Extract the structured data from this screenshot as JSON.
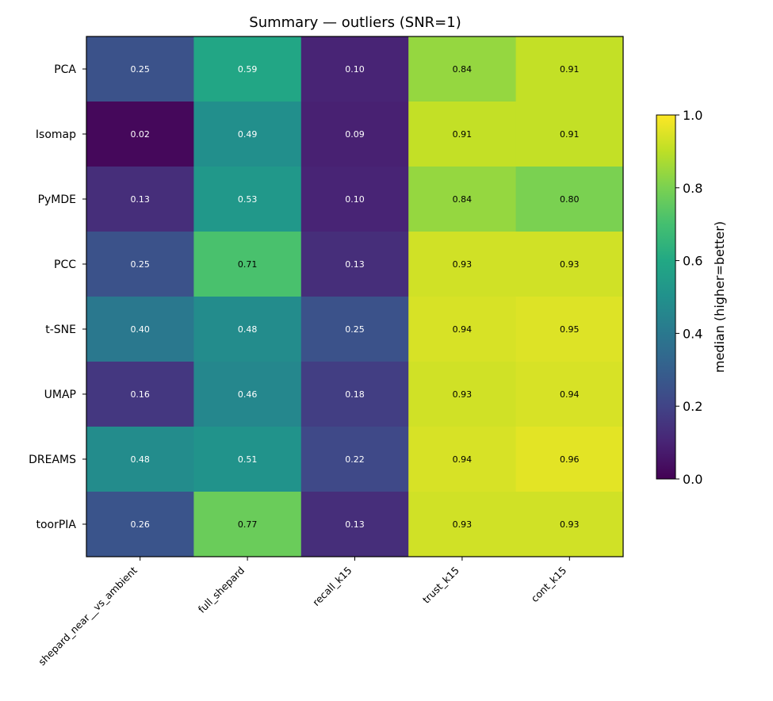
{
  "chart_data": {
    "type": "heatmap",
    "title": "Summary — outliers (SNR=1)",
    "columns": [
      "shepard_near__vs_ambient",
      "full_shepard",
      "recall_k15",
      "trust_k15",
      "cont_k15"
    ],
    "rows": [
      "PCA",
      "Isomap",
      "PyMDE",
      "PCC",
      "t-SNE",
      "UMAP",
      "DREAMS",
      "toorPIA"
    ],
    "values": [
      [
        0.25,
        0.59,
        0.1,
        0.84,
        0.91
      ],
      [
        0.02,
        0.49,
        0.09,
        0.91,
        0.91
      ],
      [
        0.13,
        0.53,
        0.1,
        0.84,
        0.8
      ],
      [
        0.25,
        0.71,
        0.13,
        0.93,
        0.93
      ],
      [
        0.4,
        0.48,
        0.25,
        0.94,
        0.95
      ],
      [
        0.16,
        0.46,
        0.18,
        0.93,
        0.94
      ],
      [
        0.48,
        0.51,
        0.22,
        0.94,
        0.96
      ],
      [
        0.26,
        0.77,
        0.13,
        0.93,
        0.93
      ]
    ],
    "labels": [
      [
        "0.25",
        "0.59",
        "0.10",
        "0.84",
        "0.91"
      ],
      [
        "0.02",
        "0.49",
        "0.09",
        "0.91",
        "0.91"
      ],
      [
        "0.13",
        "0.53",
        "0.10",
        "0.84",
        "0.80"
      ],
      [
        "0.25",
        "0.71",
        "0.13",
        "0.93",
        "0.93"
      ],
      [
        "0.40",
        "0.48",
        "0.25",
        "0.94",
        "0.95"
      ],
      [
        "0.16",
        "0.46",
        "0.18",
        "0.93",
        "0.94"
      ],
      [
        "0.48",
        "0.51",
        "0.22",
        "0.94",
        "0.96"
      ],
      [
        "0.26",
        "0.77",
        "0.13",
        "0.93",
        "0.93"
      ]
    ],
    "colormap": "viridis",
    "vmin": 0.0,
    "vmax": 1.0,
    "colorbar": {
      "label": "median (higher=better)",
      "ticks": [
        0.0,
        0.2,
        0.4,
        0.6,
        0.8,
        1.0
      ],
      "tick_labels": [
        "0.0",
        "0.2",
        "0.4",
        "0.6",
        "0.8",
        "1.0"
      ]
    }
  }
}
